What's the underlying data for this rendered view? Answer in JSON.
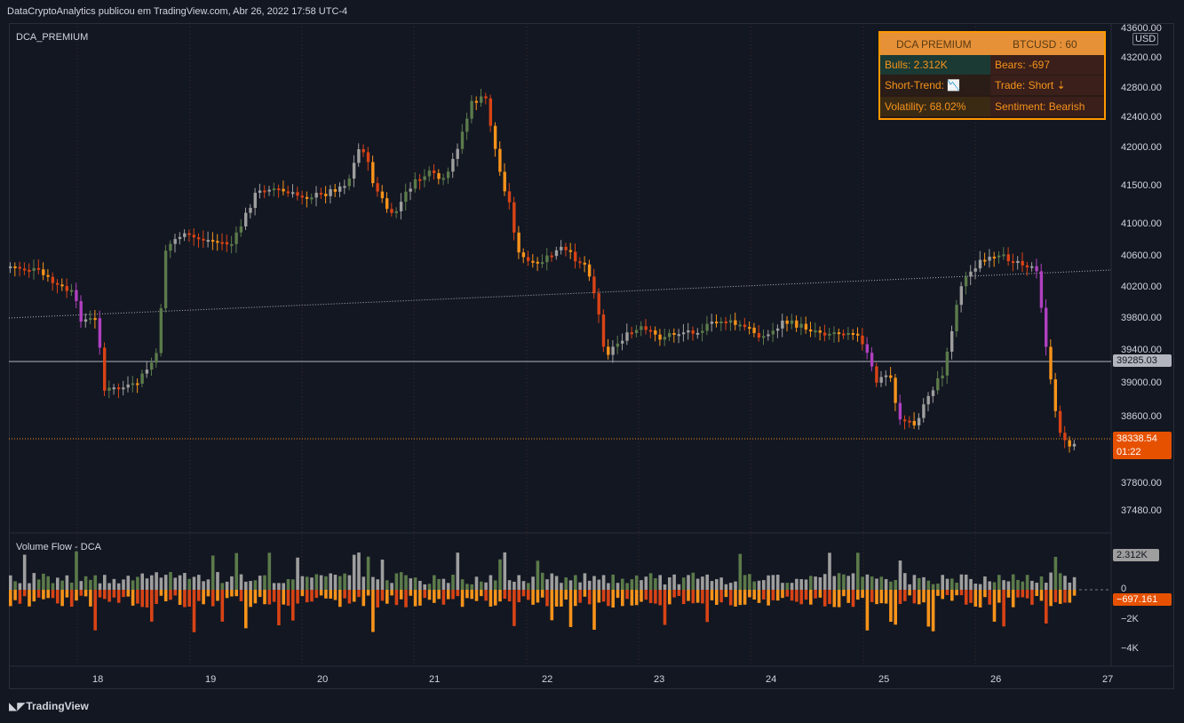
{
  "header": {
    "publisher_line": "DataCryptoAnalytics publicou em TradingView.com, Abr 26, 2022 17:58 UTC-4"
  },
  "chart": {
    "indicator_name": "DCA_PREMIUM",
    "currency": "USD",
    "price_axis": [
      "43600.00",
      "43200.00",
      "42800.00",
      "42400.00",
      "42000.00",
      "41500.00",
      "41000.00",
      "40600.00",
      "40200.00",
      "39800.00",
      "39400.00",
      "39000.00",
      "38600.00",
      "37800.00",
      "37480.00"
    ],
    "last_price": "38338.54",
    "countdown": "01:22",
    "hline_price": "39285.03",
    "time_axis": [
      "18",
      "19",
      "20",
      "21",
      "22",
      "23",
      "24",
      "25",
      "26",
      "27"
    ]
  },
  "dashboard": {
    "title": "DCA PREMIUM",
    "symbol": "BTCUSD : 60",
    "bulls": "Bulls: 2.312K",
    "bears": "Bears: -697",
    "short_trend": "Short-Trend: 📉",
    "trade": "Trade: Short ⇣",
    "volatility": "Volatility: 68.02%",
    "sentiment": "Sentiment: Bearish"
  },
  "volume_pane": {
    "title": "Volume Flow - DCA",
    "axis": [
      "0",
      "−2K",
      "−4K"
    ],
    "bulls_tag": "2.312K",
    "bears_tag": "−697.161"
  },
  "footer": {
    "brand": "TradingView"
  },
  "colors": {
    "bg": "#131722",
    "grid": "#2a2e39",
    "orange": "#f7931a",
    "dark_orange": "#d84315",
    "gray": "#9e9e9e",
    "green": "#5b7a4a",
    "purple": "#b040c0",
    "axis_text": "#d1d4dc"
  }
}
